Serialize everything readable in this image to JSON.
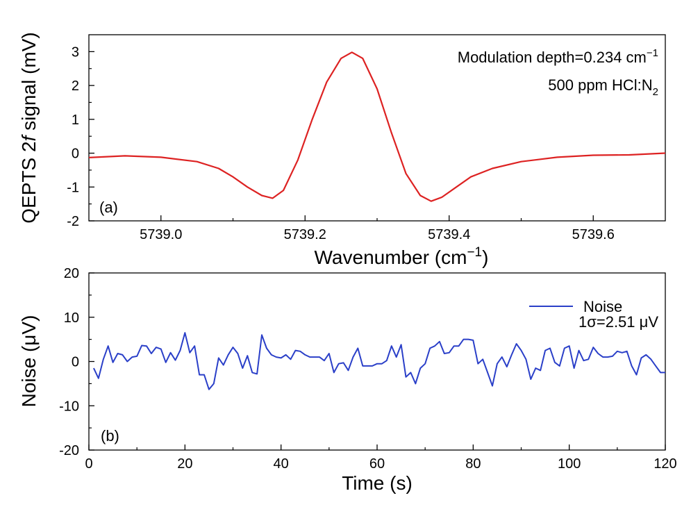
{
  "chart_data": [
    {
      "panel": "(a)",
      "type": "line",
      "xlabel_prefix": "Wavenumber (cm",
      "xlabel_sup": "−1",
      "xlabel_suffix": ")",
      "ylabel_prefix": "QEPTS 2",
      "ylabel_italic": "f",
      "ylabel_suffix": " signal (mV)",
      "xlim": [
        5738.9,
        5739.7
      ],
      "ylim": [
        -2,
        3.5
      ],
      "xticks": [
        5739.0,
        5739.2,
        5739.4,
        5739.6
      ],
      "xtick_labels": [
        "5739.0",
        "5739.2",
        "5739.4",
        "5739.6"
      ],
      "yticks": [
        -2,
        -1,
        0,
        1,
        2,
        3
      ],
      "ytick_labels": [
        "-2",
        "-1",
        "0",
        "1",
        "2",
        "3"
      ],
      "annotation_line1_prefix": "Modulation depth=0.234 cm",
      "annotation_line1_sup": "−1",
      "annotation_line2_prefix": "500 ppm HCl:N",
      "annotation_line2_sub": "2",
      "color": "#dd2222",
      "series": [
        {
          "name": "2f signal",
          "x": [
            5738.9,
            5738.95,
            5739.0,
            5739.05,
            5739.08,
            5739.1,
            5739.12,
            5739.14,
            5739.155,
            5739.17,
            5739.19,
            5739.21,
            5739.23,
            5739.25,
            5739.265,
            5739.28,
            5739.3,
            5739.32,
            5739.34,
            5739.36,
            5739.375,
            5739.39,
            5739.41,
            5739.43,
            5739.46,
            5739.5,
            5739.55,
            5739.6,
            5739.65,
            5739.7
          ],
          "y": [
            -0.13,
            -0.08,
            -0.12,
            -0.25,
            -0.45,
            -0.7,
            -1.0,
            -1.25,
            -1.33,
            -1.1,
            -0.2,
            1.0,
            2.1,
            2.8,
            2.98,
            2.8,
            1.9,
            0.6,
            -0.6,
            -1.25,
            -1.42,
            -1.3,
            -1.0,
            -0.7,
            -0.45,
            -0.25,
            -0.12,
            -0.06,
            -0.05,
            0.0
          ]
        }
      ]
    },
    {
      "panel": "(b)",
      "type": "line",
      "xlabel": "Time (s)",
      "ylabel": "Noise (μV)",
      "xlim": [
        0,
        120
      ],
      "ylim": [
        -20,
        20
      ],
      "xticks": [
        0,
        20,
        40,
        60,
        80,
        100,
        120
      ],
      "xtick_labels": [
        "0",
        "20",
        "40",
        "60",
        "80",
        "100",
        "120"
      ],
      "yticks": [
        -20,
        -10,
        0,
        10,
        20
      ],
      "ytick_labels": [
        "-20",
        "-10",
        "0",
        "10",
        "20"
      ],
      "legend_label": "Noise",
      "sigma_label": "1σ=2.51 μV",
      "color": "#2a3fc8",
      "series": [
        {
          "name": "Noise",
          "x": [
            1,
            2,
            3,
            4,
            5,
            6,
            7,
            8,
            9,
            10,
            11,
            12,
            13,
            14,
            15,
            16,
            17,
            18,
            19,
            20,
            21,
            22,
            23,
            24,
            25,
            26,
            27,
            28,
            29,
            30,
            31,
            32,
            33,
            34,
            35,
            36,
            37,
            38,
            39,
            40,
            41,
            42,
            43,
            44,
            45,
            46,
            47,
            48,
            49,
            50,
            51,
            52,
            53,
            54,
            55,
            56,
            57,
            58,
            59,
            60,
            61,
            62,
            63,
            64,
            65,
            66,
            67,
            68,
            69,
            70,
            71,
            72,
            73,
            74,
            75,
            76,
            77,
            78,
            79,
            80,
            81,
            82,
            83,
            84,
            85,
            86,
            87,
            88,
            89,
            90,
            91,
            92,
            93,
            94,
            95,
            96,
            97,
            98,
            99,
            100,
            101,
            102,
            103,
            104,
            105,
            106,
            107,
            108,
            109,
            110,
            111,
            112,
            113,
            114,
            115,
            116,
            117,
            118,
            119,
            120
          ],
          "y": [
            -1.5,
            -3.8,
            0.5,
            3.5,
            -0.2,
            1.8,
            1.5,
            0.0,
            1.0,
            1.2,
            3.6,
            3.5,
            1.8,
            3.2,
            2.8,
            -0.2,
            2.0,
            0.3,
            2.5,
            6.5,
            2.0,
            3.5,
            -3.0,
            -3.0,
            -6.3,
            -5.0,
            0.8,
            -0.8,
            1.5,
            3.2,
            1.8,
            -1.5,
            1.3,
            -2.5,
            -2.8,
            6.0,
            3.0,
            1.5,
            1.0,
            0.8,
            1.5,
            0.5,
            2.5,
            2.3,
            1.5,
            1.0,
            1.0,
            1.0,
            0.2,
            1.8,
            -2.5,
            -0.5,
            -0.3,
            -2.0,
            1.0,
            3.0,
            -1.0,
            -1.0,
            -1.0,
            -0.5,
            -0.5,
            0.2,
            3.5,
            1.0,
            3.8,
            -3.5,
            -2.5,
            -5.0,
            -1.5,
            -0.5,
            3.0,
            3.5,
            4.5,
            1.8,
            2.0,
            3.5,
            3.5,
            5.0,
            5.0,
            4.8,
            -0.5,
            0.5,
            -2.5,
            -5.5,
            -0.5,
            1.0,
            -1.2,
            1.5,
            4.0,
            2.5,
            0.5,
            -4.0,
            -1.5,
            -2.0,
            2.5,
            3.0,
            -0.2,
            -1.0,
            3.0,
            3.5,
            -1.5,
            2.5,
            0.2,
            0.5,
            3.2,
            1.8,
            1.0,
            1.0,
            1.2,
            2.3,
            2.0,
            2.3,
            -1.0,
            -3.0,
            0.8,
            1.5,
            0.5,
            -1.0,
            -2.5,
            -2.5
          ]
        }
      ]
    }
  ]
}
